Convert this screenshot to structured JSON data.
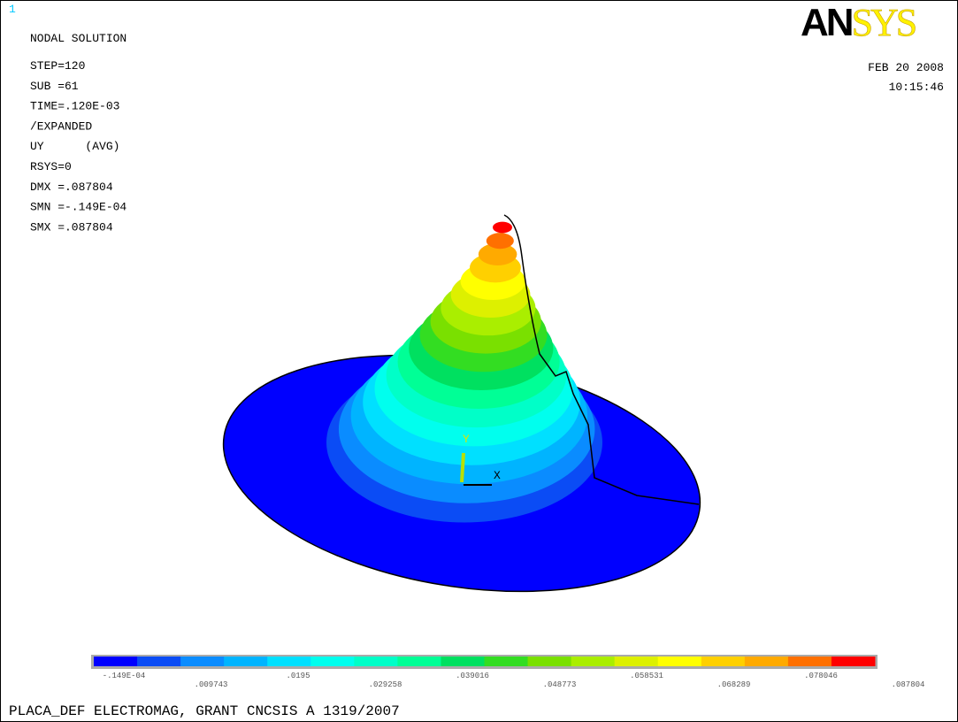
{
  "window_number": "1",
  "header": {
    "title": "NODAL SOLUTION",
    "info": [
      "STEP=120",
      "SUB =61",
      "TIME=.120E-03",
      "/EXPANDED",
      "UY      (AVG)",
      "RSYS=0",
      "DMX =.087804",
      "SMN =-.149E-04",
      "SMX =.087804"
    ],
    "logo": {
      "bold": "AN",
      "light": "SYS"
    },
    "date": "FEB 20 2008",
    "time": "10:15:46"
  },
  "triad": {
    "y": "Y",
    "x": "X"
  },
  "legend": {
    "colors": [
      "#0000ff",
      "#0b4cf5",
      "#0a8cff",
      "#00b4ff",
      "#00e0ff",
      "#00ffee",
      "#00ffc8",
      "#00ff96",
      "#00e060",
      "#33dd22",
      "#7ae000",
      "#aaee00",
      "#ddf000",
      "#ffff00",
      "#ffd000",
      "#ffaa00",
      "#ff7000",
      "#ff0000"
    ],
    "labels": [
      "-.149E-04",
      ".009743",
      ".0195",
      ".029258",
      ".039016",
      ".048773",
      ".058531",
      ".068289",
      ".078046",
      ".087804"
    ]
  },
  "footer": "PLACA_DEF ELECTROMAG, GRANT CNCSIS A 1319/2007"
}
